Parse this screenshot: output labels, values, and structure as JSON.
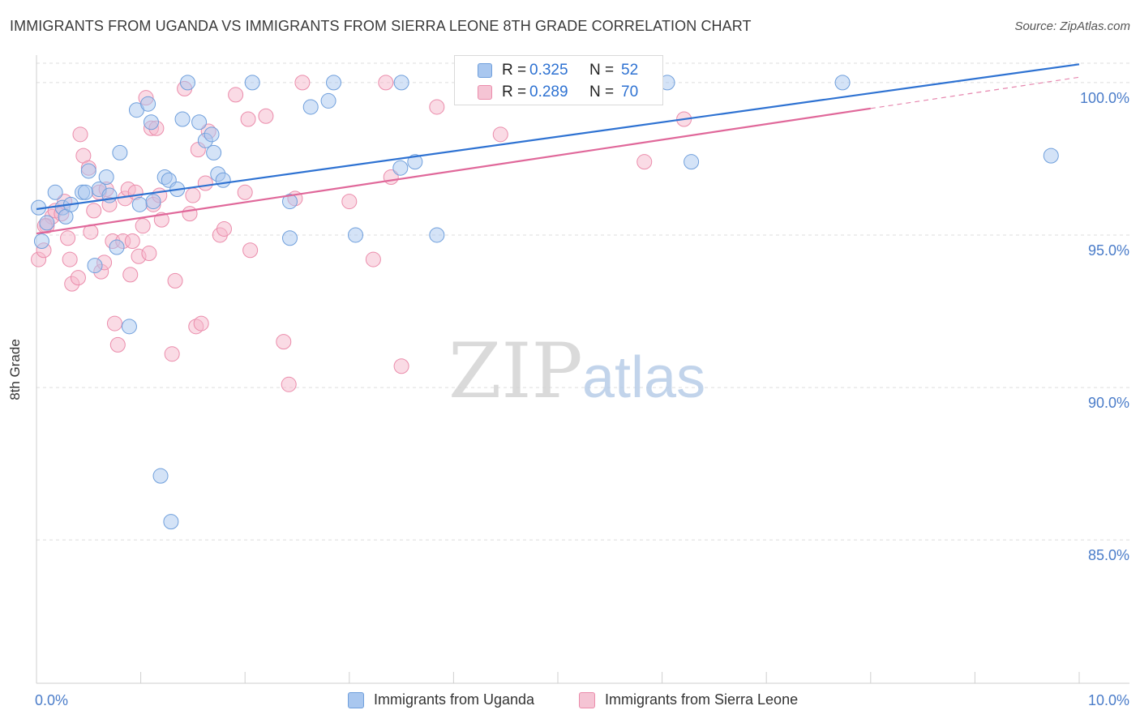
{
  "title": "IMMIGRANTS FROM UGANDA VS IMMIGRANTS FROM SIERRA LEONE 8TH GRADE CORRELATION CHART",
  "source": "Source: ZipAtlas.com",
  "watermark": {
    "zip": "ZIP",
    "atlas": "atlas"
  },
  "colors": {
    "blue_fill": "#a9c7ef",
    "blue_stroke": "#6f9fdc",
    "blue_line": "#2e72d2",
    "pink_fill": "#f5b8cb",
    "pink_stroke": "#eb8cab",
    "pink_line": "#e0689a",
    "tick_label": "#4a7cc9",
    "grid": "#dddddd"
  },
  "legend_top": {
    "rows": [
      {
        "r_label": "R =",
        "r_value": "0.325",
        "n_label": "N =",
        "n_value": "52"
      },
      {
        "r_label": "R =",
        "r_value": "0.289",
        "n_label": "N =",
        "n_value": "70"
      }
    ]
  },
  "legend_bottom": [
    "Immigrants from Uganda",
    "Immigrants from Sierra Leone"
  ],
  "chart_data": {
    "type": "scatter",
    "title": "IMMIGRANTS FROM UGANDA VS IMMIGRANTS FROM SIERRA LEONE 8TH GRADE CORRELATION CHART",
    "xlabel": "",
    "ylabel": "8th Grade",
    "xlim": [
      0.0,
      10.0
    ],
    "ylim": [
      80.3,
      100.9
    ],
    "x_tick_labels": [
      "0.0%",
      "10.0%"
    ],
    "y_ticks": [
      85.0,
      90.0,
      95.0,
      100.0
    ],
    "y_tick_labels": [
      "85.0%",
      "90.0%",
      "95.0%",
      "100.0%"
    ],
    "grid": true,
    "legend_placement": "bottom",
    "series": [
      {
        "name": "Immigrants from Uganda",
        "R": 0.325,
        "N": 52,
        "trend": {
          "x0": 0.0,
          "y0": 95.85,
          "x1": 10.0,
          "y1": 100.6
        },
        "points": [
          [
            0.02,
            95.9
          ],
          [
            0.05,
            94.8
          ],
          [
            0.1,
            95.4
          ],
          [
            0.18,
            96.4
          ],
          [
            0.25,
            95.9
          ],
          [
            0.28,
            95.6
          ],
          [
            0.33,
            96.0
          ],
          [
            0.44,
            96.4
          ],
          [
            0.5,
            97.1
          ],
          [
            0.56,
            94.0
          ],
          [
            0.6,
            96.5
          ],
          [
            0.67,
            96.9
          ],
          [
            0.7,
            96.3
          ],
          [
            0.77,
            94.6
          ],
          [
            0.8,
            97.7
          ],
          [
            0.89,
            92.0
          ],
          [
            0.96,
            99.1
          ],
          [
            0.99,
            96.0
          ],
          [
            1.07,
            99.3
          ],
          [
            1.1,
            98.7
          ],
          [
            1.12,
            96.1
          ],
          [
            1.19,
            87.1
          ],
          [
            1.23,
            96.9
          ],
          [
            1.27,
            96.8
          ],
          [
            1.29,
            85.6
          ],
          [
            1.35,
            96.5
          ],
          [
            1.4,
            98.8
          ],
          [
            1.45,
            100.0
          ],
          [
            1.56,
            98.7
          ],
          [
            1.62,
            98.1
          ],
          [
            1.68,
            98.3
          ],
          [
            1.7,
            97.7
          ],
          [
            1.74,
            97.0
          ],
          [
            1.79,
            96.8
          ],
          [
            2.07,
            100.0
          ],
          [
            2.43,
            96.1
          ],
          [
            2.43,
            94.9
          ],
          [
            2.63,
            99.2
          ],
          [
            2.8,
            99.4
          ],
          [
            2.85,
            100.0
          ],
          [
            3.06,
            95.0
          ],
          [
            3.5,
            100.0
          ],
          [
            3.49,
            97.2
          ],
          [
            3.63,
            97.4
          ],
          [
            3.84,
            95.0
          ],
          [
            5.34,
            100.0
          ],
          [
            5.46,
            100.0
          ],
          [
            6.05,
            100.0
          ],
          [
            6.28,
            97.4
          ],
          [
            7.73,
            100.0
          ],
          [
            9.73,
            97.6
          ],
          [
            0.47,
            96.4
          ]
        ]
      },
      {
        "name": "Immigrants from Sierra Leone",
        "R": 0.289,
        "N": 70,
        "trend": {
          "x0": 0.0,
          "y0": 95.05,
          "x1": 8.0,
          "y1": 99.15
        },
        "points": [
          [
            0.02,
            94.2
          ],
          [
            0.07,
            94.5
          ],
          [
            0.1,
            95.3
          ],
          [
            0.15,
            95.6
          ],
          [
            0.18,
            95.8
          ],
          [
            0.24,
            95.7
          ],
          [
            0.27,
            96.1
          ],
          [
            0.3,
            94.9
          ],
          [
            0.32,
            94.2
          ],
          [
            0.34,
            93.4
          ],
          [
            0.4,
            93.6
          ],
          [
            0.42,
            98.3
          ],
          [
            0.45,
            97.6
          ],
          [
            0.5,
            97.2
          ],
          [
            0.52,
            95.1
          ],
          [
            0.55,
            95.8
          ],
          [
            0.6,
            96.4
          ],
          [
            0.62,
            93.8
          ],
          [
            0.65,
            94.1
          ],
          [
            0.67,
            96.5
          ],
          [
            0.7,
            96.0
          ],
          [
            0.73,
            94.8
          ],
          [
            0.75,
            92.1
          ],
          [
            0.78,
            91.4
          ],
          [
            0.83,
            94.8
          ],
          [
            0.85,
            96.2
          ],
          [
            0.88,
            96.5
          ],
          [
            0.9,
            93.7
          ],
          [
            0.92,
            94.8
          ],
          [
            0.95,
            96.4
          ],
          [
            0.98,
            94.3
          ],
          [
            1.02,
            95.3
          ],
          [
            1.05,
            99.5
          ],
          [
            1.08,
            94.4
          ],
          [
            1.1,
            98.5
          ],
          [
            1.12,
            96.0
          ],
          [
            1.15,
            98.5
          ],
          [
            1.18,
            96.3
          ],
          [
            1.2,
            95.5
          ],
          [
            1.3,
            91.1
          ],
          [
            1.33,
            93.5
          ],
          [
            1.42,
            99.8
          ],
          [
            1.47,
            95.7
          ],
          [
            1.5,
            96.3
          ],
          [
            1.53,
            92.0
          ],
          [
            1.55,
            97.8
          ],
          [
            1.58,
            92.1
          ],
          [
            1.62,
            96.7
          ],
          [
            1.65,
            98.4
          ],
          [
            1.76,
            95.0
          ],
          [
            1.8,
            95.2
          ],
          [
            1.91,
            99.6
          ],
          [
            2.0,
            96.4
          ],
          [
            2.03,
            98.8
          ],
          [
            2.05,
            94.5
          ],
          [
            2.2,
            98.9
          ],
          [
            2.37,
            91.5
          ],
          [
            2.42,
            90.1
          ],
          [
            2.48,
            96.2
          ],
          [
            2.55,
            100.0
          ],
          [
            3.0,
            96.1
          ],
          [
            3.23,
            94.2
          ],
          [
            3.35,
            100.0
          ],
          [
            3.4,
            96.9
          ],
          [
            3.5,
            90.7
          ],
          [
            3.84,
            99.2
          ],
          [
            4.45,
            98.3
          ],
          [
            5.83,
            97.4
          ],
          [
            6.21,
            98.8
          ],
          [
            0.08,
            95.3
          ]
        ]
      }
    ]
  }
}
